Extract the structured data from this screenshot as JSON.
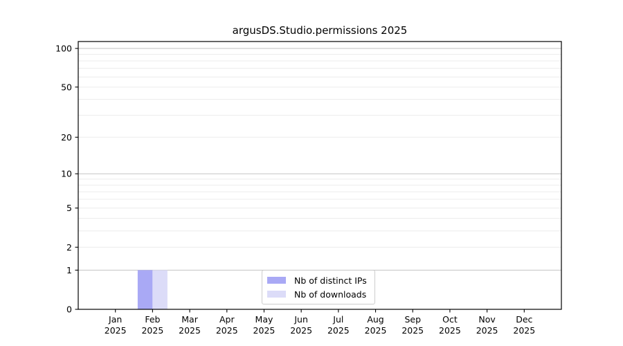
{
  "chart_data": {
    "type": "bar",
    "title": "argusDS.Studio.permissions 2025",
    "categories": [
      "Jan",
      "Feb",
      "Mar",
      "Apr",
      "May",
      "Jun",
      "Jul",
      "Aug",
      "Sep",
      "Oct",
      "Nov",
      "Dec"
    ],
    "category_year": "2025",
    "series": [
      {
        "name": "Nb of distinct IPs",
        "color": "#a9a9f5",
        "values": [
          0,
          1,
          0,
          0,
          0,
          0,
          0,
          0,
          0,
          0,
          0,
          0
        ]
      },
      {
        "name": "Nb of downloads",
        "color": "#dcdcf8",
        "values": [
          0,
          1,
          0,
          0,
          0,
          0,
          0,
          0,
          0,
          0,
          0,
          0
        ]
      }
    ],
    "yscale": "log1p",
    "ylim": [
      0,
      113
    ],
    "y_tick_values": [
      0,
      1,
      2,
      5,
      10,
      20,
      50,
      100
    ],
    "y_major_grid": [
      1,
      10,
      100
    ],
    "y_minor_grid": [
      2,
      3,
      4,
      5,
      6,
      7,
      8,
      9,
      20,
      30,
      40,
      50,
      60,
      70,
      80,
      90
    ],
    "grid": true,
    "legend_position": "lower center",
    "xlabel": "",
    "ylabel": ""
  },
  "colors": {
    "background": "#ffffff",
    "axis_spine": "#000000",
    "tick_text": "#000000",
    "grid_major": "#c2c2c2",
    "grid_minor": "#ececec",
    "legend_border": "#cccccc"
  }
}
